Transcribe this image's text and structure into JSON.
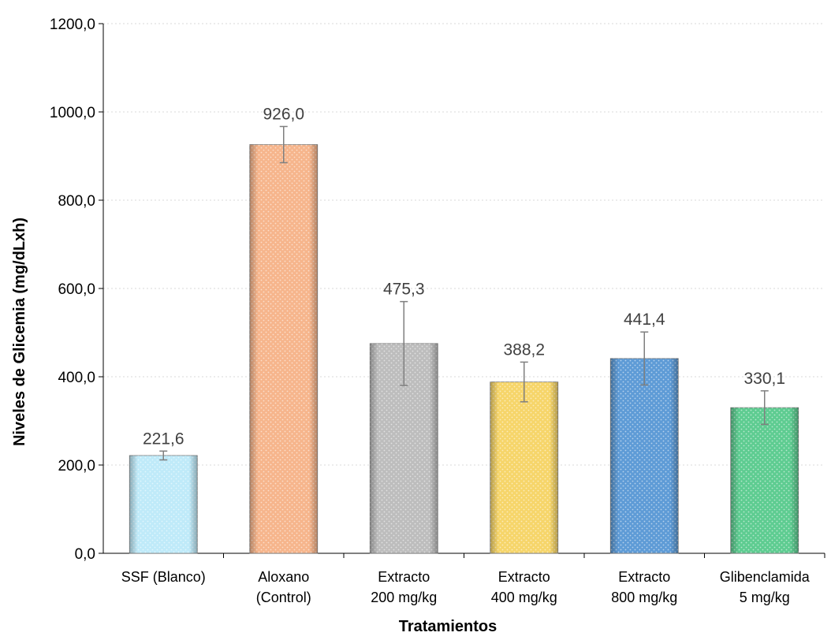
{
  "chart_data": {
    "type": "bar",
    "title": "",
    "xlabel": "Tratamientos",
    "ylabel": "Niveles de Glicemia (mg/dLxh)",
    "ylim": [
      0,
      1200
    ],
    "yticks": [
      "0,0",
      "200,0",
      "400,0",
      "600,0",
      "800,0",
      "1000,0",
      "1200,0"
    ],
    "grid": true,
    "categories": [
      [
        "SSF (Blanco)"
      ],
      [
        "Aloxano",
        "(Control)"
      ],
      [
        "Extracto",
        "200 mg/kg"
      ],
      [
        "Extracto",
        "400 mg/kg"
      ],
      [
        "Extracto",
        "800 mg/kg"
      ],
      [
        "Glibenclamida",
        "5 mg/kg"
      ]
    ],
    "values": [
      221.6,
      926.0,
      475.3,
      388.2,
      441.4,
      330.1
    ],
    "value_labels": [
      "221,6",
      "926,0",
      "475,3",
      "388,2",
      "441,4",
      "330,1"
    ],
    "error": [
      10,
      41,
      95,
      45,
      60,
      38
    ],
    "colors": [
      "#bfeaf9",
      "#f6b58c",
      "#bdbdbd",
      "#f6d56a",
      "#5e9bd6",
      "#5ecc91"
    ]
  }
}
